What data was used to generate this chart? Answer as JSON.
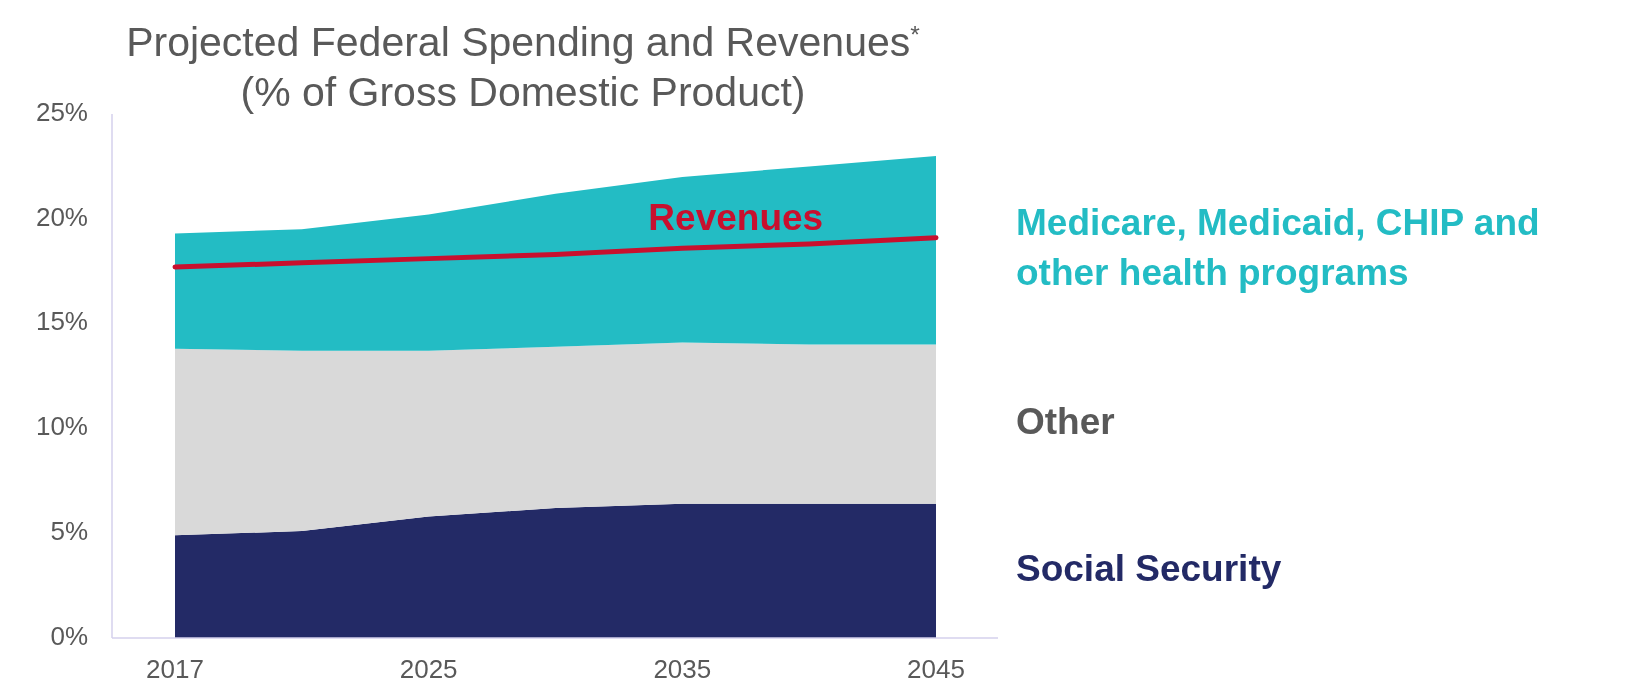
{
  "chart_data": {
    "type": "area",
    "title": "Projected Federal Spending and Revenues$^{*}$",
    "subtitle": "(% of Gross Domestic Product)",
    "categories": [
      "2017",
      null,
      "2025",
      null,
      "2035",
      null,
      "2045"
    ],
    "stacked": true,
    "grid": false,
    "ylim": [
      0,
      25
    ],
    "yticks": [
      {
        "value": 0,
        "label": "0%"
      },
      {
        "value": 5,
        "label": "5%"
      },
      {
        "value": 10,
        "label": "10%"
      },
      {
        "value": 15,
        "label": "15%"
      },
      {
        "value": 20,
        "label": "20%"
      },
      {
        "value": 25,
        "label": "25%"
      }
    ],
    "series": [
      {
        "name": "Social Security",
        "color": "#232a66",
        "values": [
          4.9,
          5.1,
          5.8,
          6.2,
          6.4,
          6.4,
          6.4
        ]
      },
      {
        "name": "Other",
        "color": "#d9d9d9",
        "values": [
          8.9,
          8.6,
          7.9,
          7.7,
          7.7,
          7.6,
          7.6
        ]
      },
      {
        "name": "Medicare, Medicaid, CHIP and other health programs",
        "color": "#23bcc4",
        "values": [
          5.5,
          5.8,
          6.5,
          7.3,
          7.9,
          8.5,
          9.0
        ]
      },
      {
        "name": "Revenues",
        "type": "line",
        "color": "#c8102e",
        "values": [
          17.7,
          17.9,
          18.1,
          18.3,
          18.6,
          18.8,
          19.1
        ]
      }
    ]
  }
}
